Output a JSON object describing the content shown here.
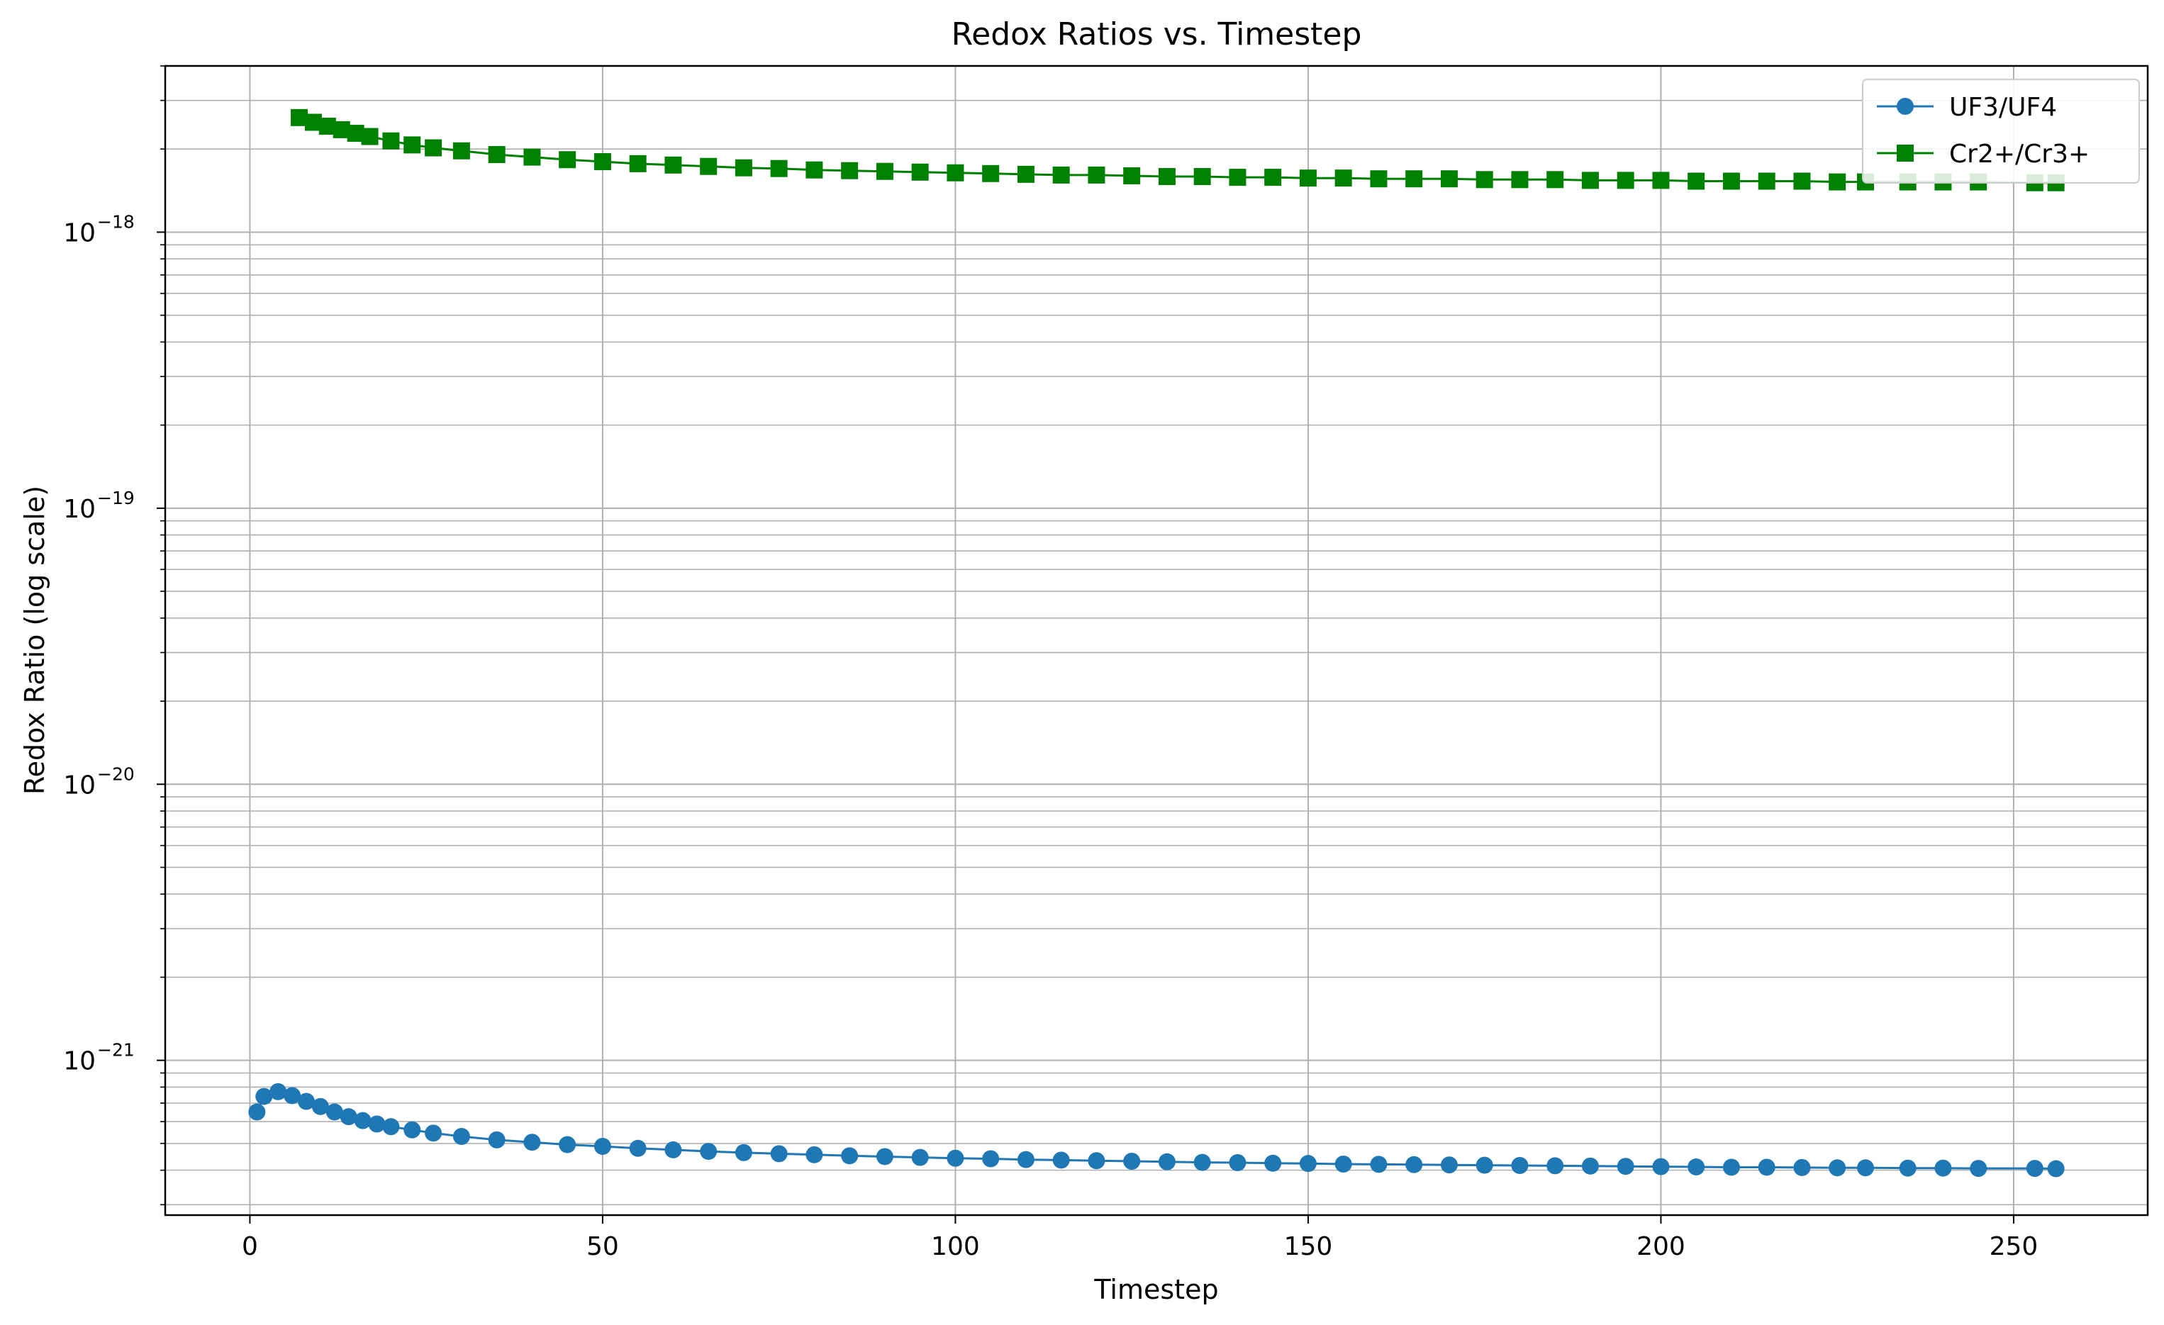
{
  "chart_data": {
    "type": "line",
    "title": "Redox Ratios vs. Timestep",
    "xlabel": "Timestep",
    "ylabel": "Redox Ratio (log scale)",
    "xlim": [
      -12,
      269
    ],
    "ylim": [
      2.75e-22,
      4e-18
    ],
    "yscale": "log",
    "grid": true,
    "grid_minor_y": true,
    "legend_position": "top-right",
    "x_ticks": [
      {
        "value": 0,
        "label": "0"
      },
      {
        "value": 50,
        "label": "50"
      },
      {
        "value": 100,
        "label": "100"
      },
      {
        "value": 150,
        "label": "150"
      },
      {
        "value": 200,
        "label": "200"
      },
      {
        "value": 250,
        "label": "250"
      }
    ],
    "y_ticks": [
      {
        "value": 1e-21,
        "base": "10",
        "exp": "−21"
      },
      {
        "value": 1e-20,
        "base": "10",
        "exp": "−20"
      },
      {
        "value": 1e-19,
        "base": "10",
        "exp": "−19"
      },
      {
        "value": 1e-18,
        "base": "10",
        "exp": "−18"
      }
    ],
    "series": [
      {
        "name": "UF3/UF4",
        "color": "#1f77b4",
        "marker": "circle",
        "x": [
          1,
          2,
          4,
          6,
          8,
          10,
          12,
          14,
          16,
          18,
          20,
          23,
          26,
          30,
          35,
          40,
          45,
          50,
          55,
          60,
          65,
          70,
          75,
          80,
          85,
          90,
          95,
          100,
          105,
          110,
          115,
          120,
          125,
          130,
          135,
          140,
          145,
          150,
          155,
          160,
          165,
          170,
          175,
          180,
          185,
          190,
          195,
          200,
          205,
          210,
          215,
          220,
          225,
          229,
          235,
          240,
          245,
          253,
          256
        ],
        "y": [
          6.5e-22,
          7.4e-22,
          7.7e-22,
          7.45e-22,
          7.1e-22,
          6.8e-22,
          6.5e-22,
          6.25e-22,
          6.05e-22,
          5.88e-22,
          5.75e-22,
          5.6e-22,
          5.45e-22,
          5.3e-22,
          5.15e-22,
          5.05e-22,
          4.95e-22,
          4.88e-22,
          4.8e-22,
          4.74e-22,
          4.68e-22,
          4.63e-22,
          4.59e-22,
          4.55e-22,
          4.51e-22,
          4.48e-22,
          4.45e-22,
          4.42e-22,
          4.4e-22,
          4.37e-22,
          4.35e-22,
          4.33e-22,
          4.31e-22,
          4.29e-22,
          4.27e-22,
          4.26e-22,
          4.24e-22,
          4.23e-22,
          4.21e-22,
          4.2e-22,
          4.19e-22,
          4.18e-22,
          4.17e-22,
          4.16e-22,
          4.15e-22,
          4.14e-22,
          4.13e-22,
          4.12e-22,
          4.11e-22,
          4.1e-22,
          4.1e-22,
          4.09e-22,
          4.08e-22,
          4.08e-22,
          4.07e-22,
          4.07e-22,
          4.06e-22,
          4.06e-22,
          4.05e-22
        ]
      },
      {
        "name": "Cr2+/Cr3+",
        "color": "#008000",
        "marker": "square",
        "x": [
          7,
          9,
          11,
          13,
          15,
          17,
          20,
          23,
          26,
          30,
          35,
          40,
          45,
          50,
          55,
          60,
          65,
          70,
          75,
          80,
          85,
          90,
          95,
          100,
          105,
          110,
          115,
          120,
          125,
          130,
          135,
          140,
          145,
          150,
          155,
          160,
          165,
          170,
          175,
          180,
          185,
          190,
          195,
          200,
          205,
          210,
          215,
          220,
          225,
          229,
          235,
          240,
          245,
          253,
          256
        ],
        "y": [
          2.6e-18,
          2.5e-18,
          2.42e-18,
          2.35e-18,
          2.28e-18,
          2.22e-18,
          2.14e-18,
          2.07e-18,
          2.02e-18,
          1.97e-18,
          1.91e-18,
          1.87e-18,
          1.83e-18,
          1.8e-18,
          1.77e-18,
          1.75e-18,
          1.73e-18,
          1.71e-18,
          1.7e-18,
          1.68e-18,
          1.67e-18,
          1.66e-18,
          1.65e-18,
          1.64e-18,
          1.63e-18,
          1.62e-18,
          1.61e-18,
          1.61e-18,
          1.6e-18,
          1.59e-18,
          1.59e-18,
          1.58e-18,
          1.58e-18,
          1.57e-18,
          1.57e-18,
          1.56e-18,
          1.56e-18,
          1.56e-18,
          1.55e-18,
          1.55e-18,
          1.55e-18,
          1.54e-18,
          1.54e-18,
          1.54e-18,
          1.53e-18,
          1.53e-18,
          1.53e-18,
          1.53e-18,
          1.52e-18,
          1.52e-18,
          1.52e-18,
          1.52e-18,
          1.52e-18,
          1.51e-18,
          1.51e-18
        ]
      }
    ]
  }
}
